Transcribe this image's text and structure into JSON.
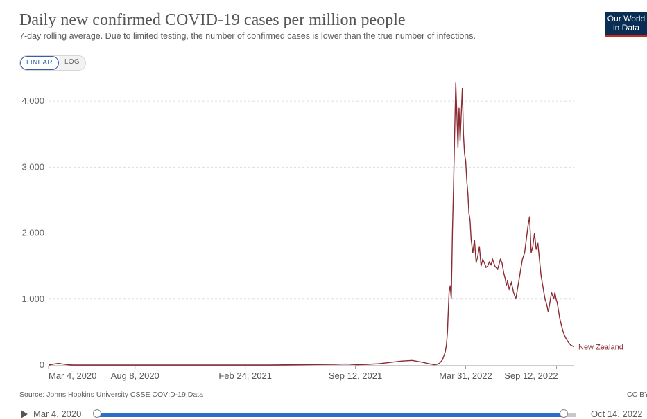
{
  "header": {
    "title": "Daily new confirmed COVID-19 cases per million people",
    "subtitle": "7-day rolling average. Due to limited testing, the number of confirmed cases is lower than the true number of infections.",
    "logo_line1": "Our World",
    "logo_line2": "in Data"
  },
  "scale_toggle": {
    "linear_label": "LINEAR",
    "log_label": "LOG",
    "selected": "LINEAR"
  },
  "footer": {
    "source": "Source: Johns Hopkins University CSSE COVID-19 Data",
    "license": "CC BY"
  },
  "timeline": {
    "start_label": "Mar 4, 2020",
    "end_label": "Oct 14, 2022"
  },
  "colors": {
    "series": "#8b2a32",
    "accent": "#2a6ec7",
    "logo_bg": "#0a2d53",
    "logo_bar": "#ce261e"
  },
  "chart_data": {
    "type": "line",
    "title": "Daily new confirmed COVID-19 cases per million people",
    "xlabel": "",
    "ylabel": "",
    "ylim": [
      0,
      4400
    ],
    "yticks": [
      0,
      1000,
      2000,
      3000,
      4000
    ],
    "ytick_labels": [
      "0",
      "1,000",
      "2,000",
      "3,000",
      "4,000"
    ],
    "xlim_days": [
      0,
      954
    ],
    "xticks": [
      {
        "day": 0,
        "label": "Mar 4, 2020"
      },
      {
        "day": 157,
        "label": "Aug 8, 2020"
      },
      {
        "day": 357,
        "label": "Feb 24, 2021"
      },
      {
        "day": 557,
        "label": "Sep 12, 2021"
      },
      {
        "day": 757,
        "label": "Mar 31, 2022"
      },
      {
        "day": 922,
        "label": "Sep 12, 2022"
      }
    ],
    "series": [
      {
        "name": "New Zealand",
        "x_unit": "days since Mar 4, 2020",
        "x": [
          0,
          10,
          18,
          26,
          35,
          45,
          60,
          100,
          200,
          300,
          400,
          520,
          540,
          560,
          580,
          600,
          620,
          640,
          660,
          680,
          690,
          700,
          705,
          710,
          715,
          718,
          720,
          722,
          724,
          725,
          727,
          729,
          731,
          733,
          735,
          737,
          739,
          741,
          743,
          745,
          747,
          749,
          751,
          753,
          755,
          757,
          759,
          761,
          763,
          765,
          767,
          770,
          773,
          776,
          779,
          782,
          785,
          788,
          791,
          794,
          797,
          800,
          803,
          806,
          810,
          815,
          820,
          823,
          826,
          829,
          831,
          833,
          836,
          840,
          844,
          848,
          852,
          856,
          860,
          864,
          867,
          870,
          873,
          876,
          879,
          882,
          885,
          888,
          891,
          894,
          897,
          899,
          901,
          903,
          905,
          907,
          909,
          911,
          913,
          915,
          917,
          919,
          921,
          923,
          925,
          928,
          931,
          934,
          938,
          943,
          948,
          954
        ],
        "y": [
          0,
          15,
          25,
          15,
          5,
          0,
          0,
          0,
          0,
          0,
          0,
          10,
          15,
          5,
          10,
          20,
          40,
          60,
          70,
          40,
          20,
          5,
          10,
          30,
          80,
          150,
          200,
          300,
          500,
          700,
          1100,
          1200,
          1000,
          2000,
          2700,
          3500,
          4280,
          3800,
          3300,
          3900,
          3400,
          3800,
          4200,
          3500,
          3200,
          3100,
          2800,
          2600,
          2300,
          2200,
          1900,
          1700,
          1900,
          1550,
          1650,
          1800,
          1500,
          1600,
          1550,
          1480,
          1500,
          1560,
          1520,
          1600,
          1500,
          1450,
          1600,
          1550,
          1400,
          1300,
          1200,
          1280,
          1150,
          1250,
          1100,
          1000,
          1200,
          1400,
          1600,
          1700,
          1900,
          2100,
          2250,
          1700,
          1800,
          2000,
          1750,
          1850,
          1600,
          1350,
          1200,
          1100,
          1000,
          950,
          880,
          800,
          900,
          1000,
          1100,
          1050,
          1000,
          1100,
          1000,
          950,
          850,
          700,
          600,
          500,
          420,
          350,
          300,
          280
        ]
      }
    ],
    "series_label": "New Zealand"
  }
}
